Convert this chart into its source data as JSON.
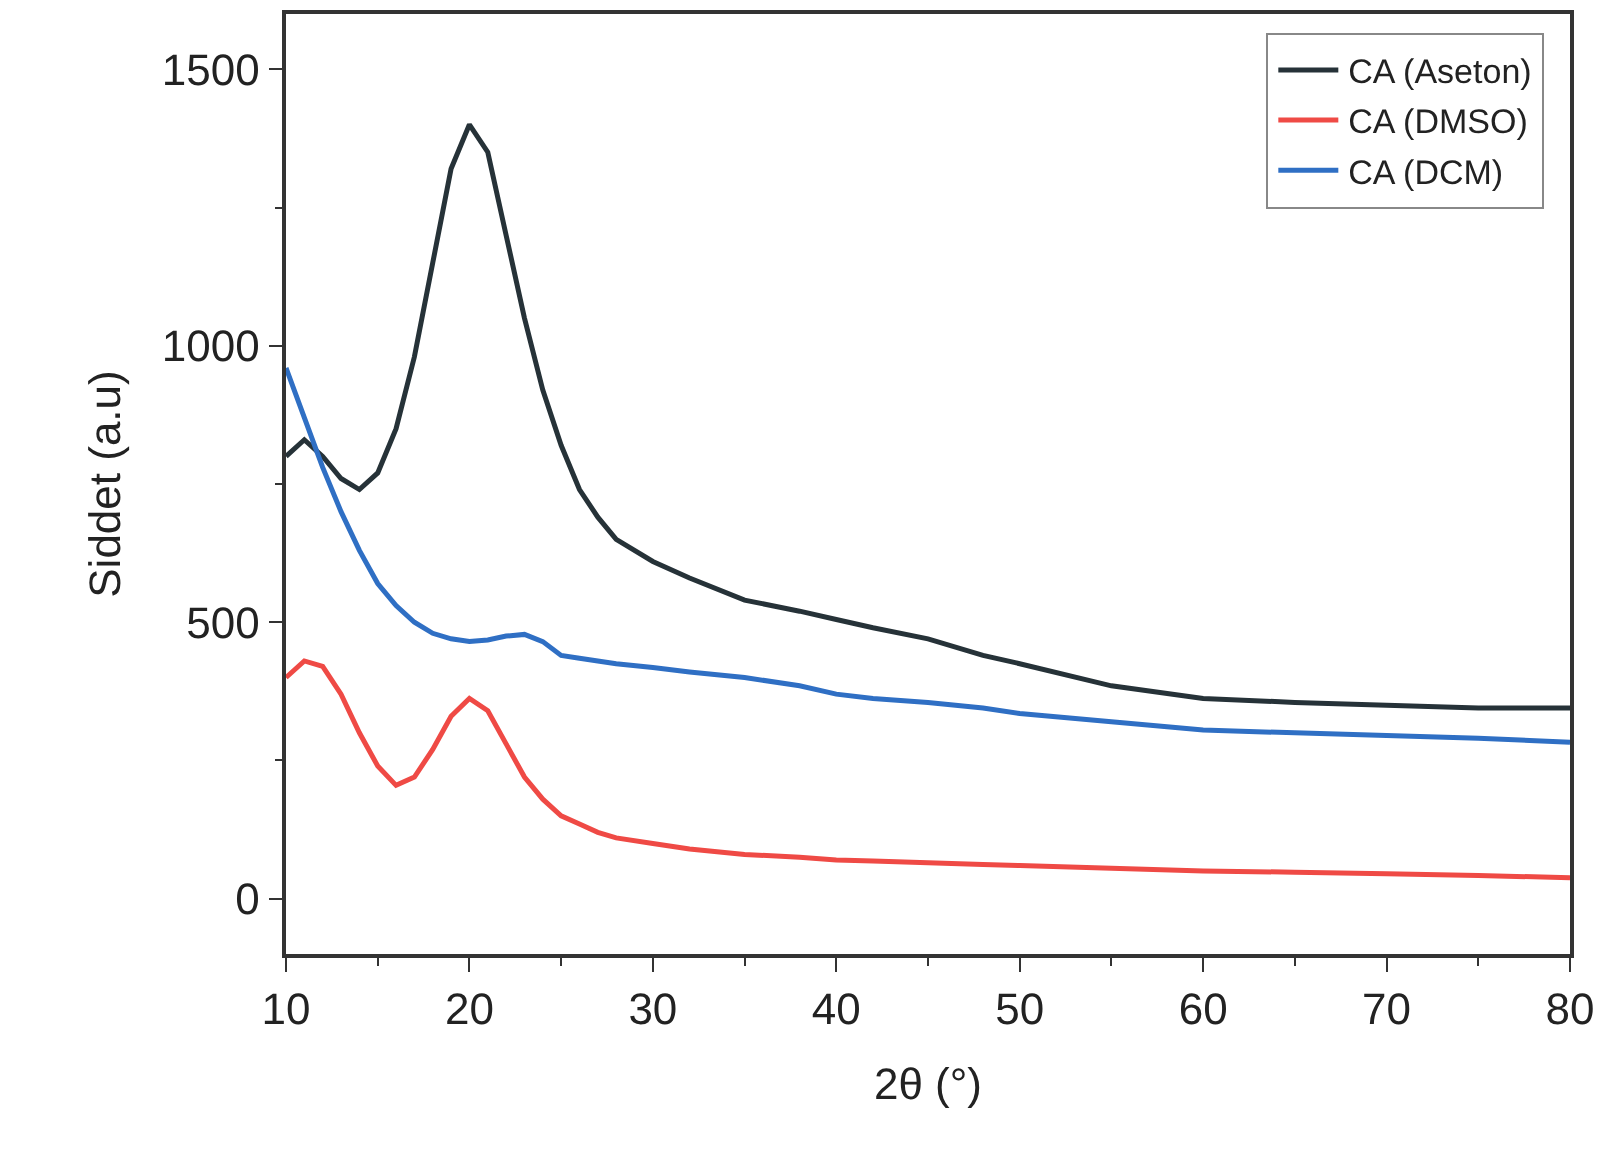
{
  "chart_data": {
    "type": "line",
    "xlabel": "2θ (°)",
    "ylabel": "Siddet (a.u)",
    "xlim": [
      10,
      80
    ],
    "ylim": [
      -100,
      1600
    ],
    "xticks": [
      10,
      20,
      30,
      40,
      50,
      60,
      70,
      80
    ],
    "yticks": [
      0,
      500,
      1000,
      1500
    ],
    "grid": false,
    "legend": "top right",
    "line_style": "solid",
    "marker": "none",
    "x": [
      10,
      11,
      12,
      13,
      14,
      15,
      16,
      17,
      18,
      19,
      20,
      21,
      22,
      23,
      24,
      25,
      26,
      27,
      28,
      30,
      32,
      35,
      38,
      40,
      42,
      45,
      48,
      50,
      55,
      60,
      65,
      70,
      75,
      80
    ],
    "series": [
      {
        "name": "CA (Aseton)",
        "color": "#263238",
        "values": [
          800,
          830,
          800,
          760,
          740,
          770,
          850,
          980,
          1150,
          1320,
          1400,
          1350,
          1200,
          1050,
          920,
          820,
          740,
          690,
          650,
          610,
          580,
          540,
          520,
          505,
          490,
          470,
          440,
          425,
          385,
          362,
          355,
          350,
          345,
          345
        ]
      },
      {
        "name": "CA (DMSO)",
        "color": "#ef4a45",
        "values": [
          400,
          430,
          420,
          370,
          300,
          240,
          205,
          220,
          270,
          330,
          362,
          340,
          280,
          220,
          180,
          150,
          135,
          120,
          110,
          100,
          90,
          80,
          75,
          70,
          68,
          65,
          62,
          60,
          55,
          50,
          48,
          45,
          42,
          38
        ]
      },
      {
        "name": "CA (DCM)",
        "color": "#2f6fc4",
        "values": [
          960,
          870,
          780,
          700,
          630,
          570,
          530,
          500,
          480,
          470,
          465,
          468,
          475,
          478,
          465,
          440,
          435,
          430,
          425,
          418,
          410,
          400,
          385,
          370,
          362,
          355,
          345,
          335,
          320,
          305,
          300,
          295,
          290,
          283
        ]
      }
    ]
  }
}
